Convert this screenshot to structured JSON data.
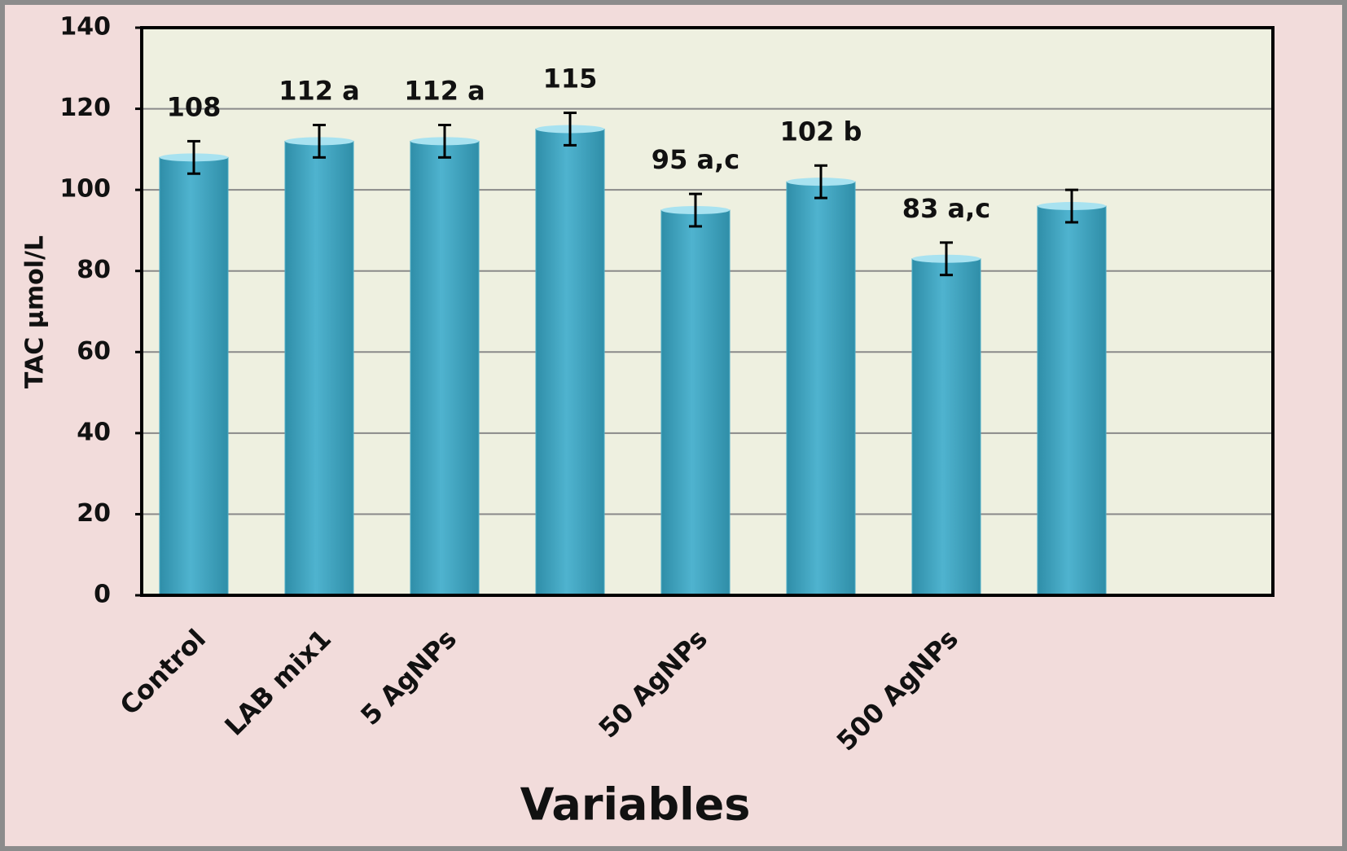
{
  "chart_data": {
    "type": "bar",
    "x_label": "Variables",
    "y_label": "TAC  µmol/L",
    "categories": [
      "Control",
      "LAB mix1",
      "5 AgNPs",
      null,
      "50 AgNPs",
      null,
      "500  AgNPs",
      null
    ],
    "values": [
      108,
      112,
      112,
      115,
      95,
      102,
      83,
      96
    ],
    "errors": [
      4,
      4,
      4,
      4,
      4,
      4,
      4,
      4
    ],
    "value_labels": [
      "108",
      "112 a",
      "112 a",
      "115",
      "95 a,c",
      "102 b",
      "83 a,c",
      null
    ],
    "color": "#4bacc6",
    "ylim": [
      0,
      140
    ],
    "yticks": [
      0,
      20,
      40,
      60,
      80,
      100,
      120,
      140
    ],
    "grid": true
  }
}
